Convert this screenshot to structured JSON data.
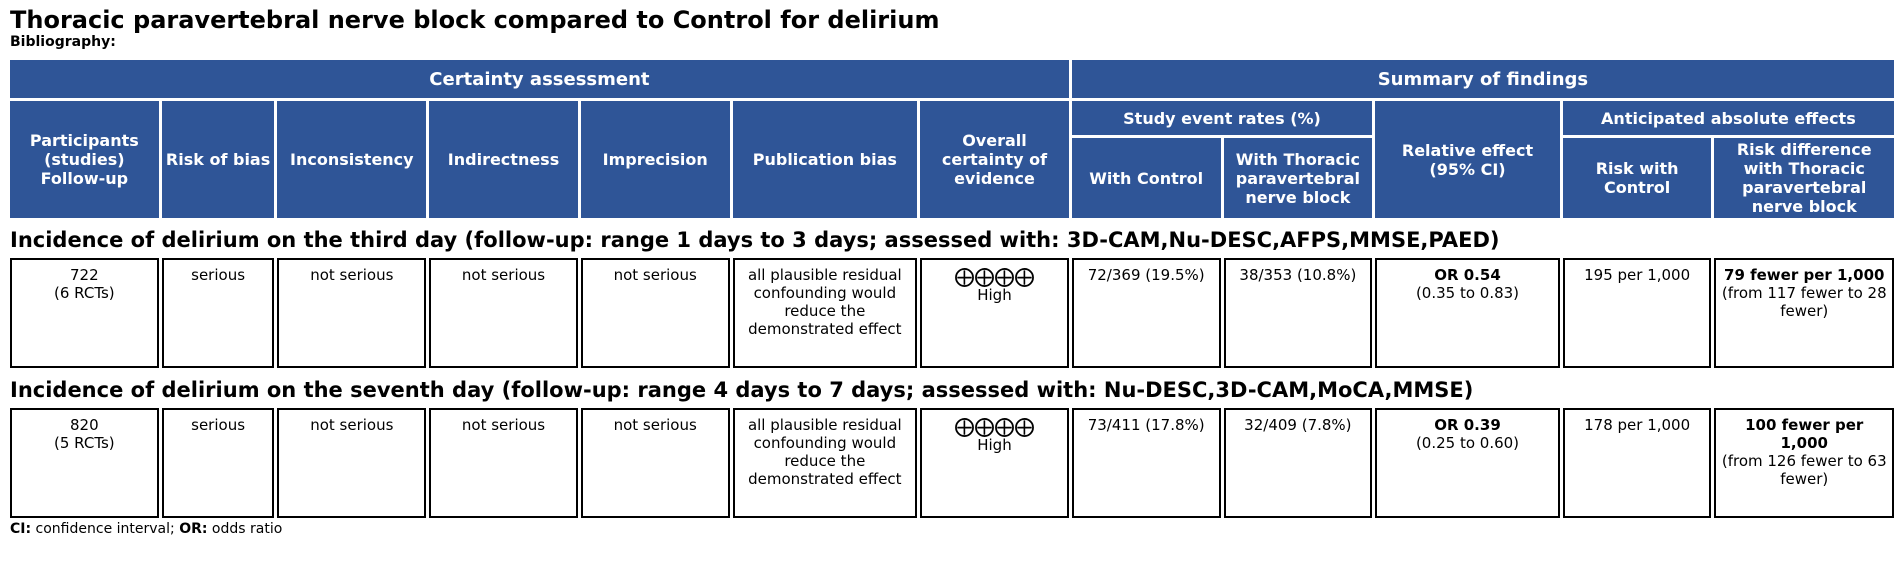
{
  "title": "Thoracic paravertebral nerve block compared to Control for delirium",
  "bibliography_label": "Bibliography:",
  "header": {
    "certainty_assessment": "Certainty assessment",
    "summary_of_findings": "Summary of findings",
    "participants": "Participants (studies) Follow-up",
    "risk_of_bias": "Risk of bias",
    "inconsistency": "Inconsistency",
    "indirectness": "Indirectness",
    "imprecision": "Imprecision",
    "publication_bias": "Publication bias",
    "overall_certainty": "Overall certainty of evidence",
    "study_event_rates": "Study event rates (%)",
    "with_control": "With Control",
    "with_tpvb": "With Thoracic paravertebral nerve block",
    "relative_effect": "Relative effect (95% CI)",
    "anticipated_absolute": "Anticipated absolute effects",
    "risk_with_control": "Risk with Control",
    "risk_difference": "Risk difference with Thoracic paravertebral nerve block"
  },
  "outcomes": [
    {
      "title": "Incidence of delirium on the third day (follow-up: range 1 days to 3 days; assessed with: 3D-CAM,Nu-DESC,AFPS,MMSE,PAED)",
      "participants": "722",
      "studies": "(6 RCTs)",
      "risk_of_bias": "serious",
      "inconsistency": "not serious",
      "indirectness": "not serious",
      "imprecision": "not serious",
      "publication_bias": "all plausible residual confounding would reduce the demonstrated effect",
      "certainty_symbols": "⨁⨁⨁⨁",
      "certainty_label": "High",
      "with_control": "72/369 (19.5%)",
      "with_tpvb": "38/353 (10.8%)",
      "relative_effect": "OR 0.54",
      "relative_ci": "(0.35 to 0.83)",
      "risk_with_control": "195 per 1,000",
      "risk_difference": "79 fewer per 1,000",
      "risk_difference_range": "(from 117 fewer to 28 fewer)"
    },
    {
      "title": "Incidence of delirium on the seventh day (follow-up: range 4 days to 7 days; assessed with: Nu-DESC,3D-CAM,MoCA,MMSE)",
      "participants": "820",
      "studies": "(5 RCTs)",
      "risk_of_bias": "serious",
      "inconsistency": "not serious",
      "indirectness": "not serious",
      "imprecision": "not serious",
      "publication_bias": "all plausible residual confounding would reduce the demonstrated effect",
      "certainty_symbols": "⨁⨁⨁⨁",
      "certainty_label": "High",
      "with_control": "73/411 (17.8%)",
      "with_tpvb": "32/409 (7.8%)",
      "relative_effect": "OR 0.39",
      "relative_ci": "(0.25 to 0.60)",
      "risk_with_control": "178 per 1,000",
      "risk_difference": "100 fewer per 1,000",
      "risk_difference_range": "(from 126 fewer to 63 fewer)"
    }
  ],
  "footnote": {
    "ci_abbr": "CI:",
    "ci_text": "confidence interval;",
    "or_abbr": "OR:",
    "or_text": "odds ratio"
  },
  "colors": {
    "header_fill": "#2f5597",
    "header_text": "#ffffff"
  }
}
